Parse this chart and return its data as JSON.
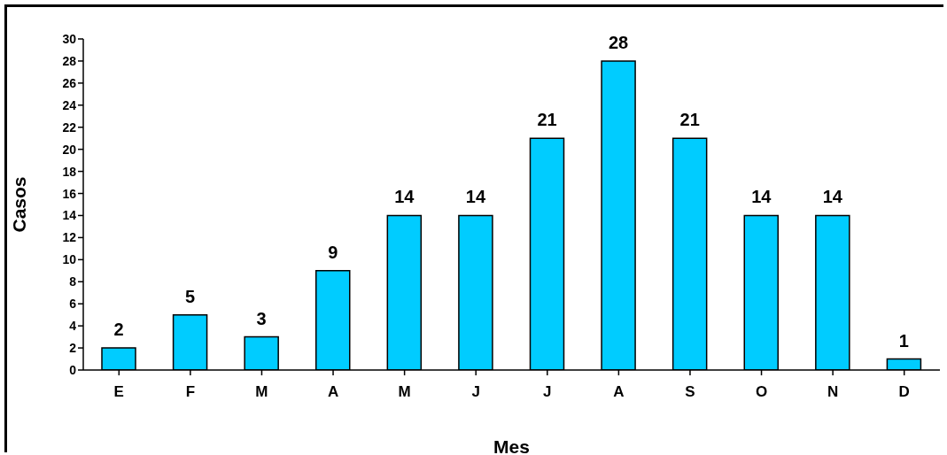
{
  "chart_data": {
    "type": "bar",
    "xlabel": "Mes",
    "ylabel": "Casos",
    "categories": [
      "E",
      "F",
      "M",
      "A",
      "M",
      "J",
      "J",
      "A",
      "S",
      "O",
      "N",
      "D"
    ],
    "values": [
      2,
      5,
      3,
      9,
      14,
      14,
      21,
      28,
      21,
      14,
      14,
      1
    ],
    "color": "#00ccff",
    "ylim": [
      0,
      30
    ],
    "yticks": [
      0,
      2,
      4,
      6,
      8,
      10,
      12,
      14,
      16,
      18,
      20,
      22,
      24,
      26,
      28,
      30
    ],
    "grid": false,
    "legend": false,
    "data_labels": true
  }
}
